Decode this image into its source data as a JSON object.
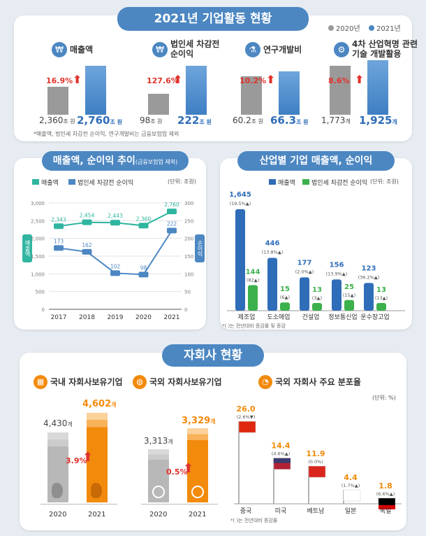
{
  "top": {
    "title": "2021년 기업활동 현황",
    "legend": [
      "2020년",
      "2021년"
    ],
    "footnote": "*매출액, 법인세 차감전 순이익, 연구개발비는 금융보험업 제외",
    "items": [
      {
        "label_lines": [
          "매출액"
        ],
        "pct": "16.9%",
        "v2020": "2,360",
        "u2020": "조 원",
        "v2021": "2,760",
        "u2021": "조 원",
        "icon": "money-icon"
      },
      {
        "label_lines": [
          "법인세 차감전",
          "순이익"
        ],
        "pct": "127.6%",
        "v2020": "98",
        "u2020": "조 원",
        "v2021": "222",
        "u2021": "조 원",
        "icon": "money-icon"
      },
      {
        "label_lines": [
          "연구개발비"
        ],
        "pct": "10.2%",
        "v2020": "60.2",
        "u2020": "조 원",
        "v2021": "66.3",
        "u2021": "조 원",
        "icon": "research-icon"
      },
      {
        "label_lines": [
          "4차 산업혁명 관련",
          "기술 개발활용"
        ],
        "pct": "8.6%",
        "v2020": "1,773",
        "u2020": "개",
        "v2021": "1,925",
        "u2021": "개",
        "icon": "gear-icon"
      }
    ]
  },
  "trend": {
    "title": "매출액, 순이익 추이",
    "title_note": "(금융보험업 제외)",
    "unit": "(단위: 조원)",
    "side_left": "매출액",
    "side_right": "순이익"
  },
  "industry": {
    "title": "산업별 기업 매출액, 순이익",
    "unit": "(단위: 조원)",
    "footnote": "*( )는 전년대비 증감률 및 증감"
  },
  "subsidiary": {
    "title": "자회사 현황",
    "domestic": {
      "title": "국내 자회사보유기업",
      "v2020": "4,430",
      "v2021": "4,602",
      "unit": "개",
      "pct": "3.9%",
      "years": [
        "2020",
        "2021"
      ]
    },
    "foreign": {
      "title": "국외 자회사보유기업",
      "v2020": "3,313",
      "v2021": "3,329",
      "unit": "개",
      "pct": "0.5%",
      "years": [
        "2020",
        "2021"
      ]
    },
    "distribution": {
      "title": "국외 자회사 주요 분포율",
      "unit": "(단위: %)",
      "footnote": "*( )는 전년대비 증감률"
    }
  },
  "chart_data": [
    {
      "type": "line",
      "title": "매출액, 순이익 추이",
      "categories": [
        "2017",
        "2018",
        "2019",
        "2020",
        "2021"
      ],
      "series": [
        {
          "name": "매출액",
          "axis": "left",
          "values": [
            2343,
            2454,
            2443,
            2360,
            2760
          ],
          "labels": [
            "2,343",
            "2,454",
            "2,443",
            "2,360",
            "2,760"
          ],
          "color": "#2fb5a0"
        },
        {
          "name": "법인세 차감전 순이익",
          "axis": "right",
          "values": [
            173,
            162,
            102,
            98,
            222
          ],
          "labels": [
            "173",
            "162",
            "102",
            "98",
            "222"
          ],
          "color": "#4c87c2"
        }
      ],
      "y_left": {
        "range": [
          0,
          3000
        ],
        "ticks": [
          "0",
          "500",
          "1,000",
          "1,500",
          "2,000",
          "2,500",
          "3,000"
        ]
      },
      "y_right": {
        "range": [
          0,
          300
        ],
        "ticks": [
          "0",
          "50",
          "100",
          "150",
          "200",
          "250",
          "300"
        ]
      },
      "grid": true
    },
    {
      "type": "bar",
      "title": "산업별 기업 매출액, 순이익",
      "categories": [
        "제조업",
        "도소매업",
        "건설업",
        "정보통신업",
        "운수창고업"
      ],
      "series": [
        {
          "name": "매출액",
          "values": [
            1645,
            446,
            177,
            156,
            123
          ],
          "labels": [
            "1,645",
            "446",
            "177",
            "156",
            "123"
          ],
          "changes": [
            "19.5%",
            "13.8%",
            "2.0%",
            "13.9%",
            "36.2%"
          ],
          "color": "#2f6db8"
        },
        {
          "name": "법인세 차감전 순이익",
          "values": [
            144,
            15,
            13,
            25,
            13
          ],
          "labels": [
            "144",
            "15",
            "13",
            "25",
            "13"
          ],
          "changes": [
            "82",
            "6",
            "3",
            "15",
            "13"
          ],
          "color": "#3cb04a"
        }
      ]
    },
    {
      "type": "bar",
      "title": "국외 자회사 주요 분포율",
      "categories": [
        "중국",
        "미국",
        "베트남",
        "일본",
        "독일"
      ],
      "values": [
        26.0,
        14.4,
        11.9,
        4.4,
        1.8
      ],
      "labels": [
        "26.0",
        "14.4",
        "11.9",
        "4.4",
        "1.8"
      ],
      "changes": [
        "2.6%",
        "4.6%",
        "0.0%",
        "1.7%",
        "6.6%"
      ],
      "directions": [
        "down",
        "up",
        "",
        "up",
        "up"
      ],
      "color": "#f28a0c"
    }
  ]
}
